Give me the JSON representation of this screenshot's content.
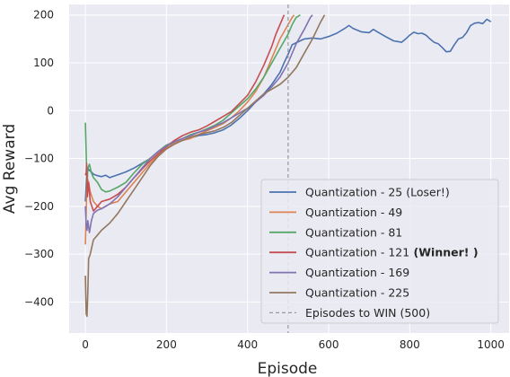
{
  "chart_data": {
    "type": "line",
    "xlabel": "Episode",
    "ylabel": "Avg Reward",
    "xlim": [
      -40,
      1045
    ],
    "ylim": [
      -465,
      222
    ],
    "xticks": [
      0,
      200,
      400,
      600,
      800,
      1000
    ],
    "yticks": [
      -400,
      -300,
      -200,
      -100,
      0,
      100,
      200
    ],
    "grid": true,
    "legend_position": "lower-right",
    "series": [
      {
        "name": "Quantization - 25 (Loser!)",
        "color": "#4c72b0",
        "points": [
          [
            0,
            -190
          ],
          [
            3,
            -140
          ],
          [
            6,
            -120
          ],
          [
            10,
            -125
          ],
          [
            15,
            -128
          ],
          [
            20,
            -133
          ],
          [
            30,
            -136
          ],
          [
            40,
            -138
          ],
          [
            50,
            -135
          ],
          [
            60,
            -140
          ],
          [
            70,
            -137
          ],
          [
            80,
            -134
          ],
          [
            90,
            -131
          ],
          [
            100,
            -128
          ],
          [
            120,
            -120
          ],
          [
            140,
            -110
          ],
          [
            160,
            -100
          ],
          [
            180,
            -85
          ],
          [
            200,
            -72
          ],
          [
            220,
            -68
          ],
          [
            240,
            -62
          ],
          [
            260,
            -57
          ],
          [
            280,
            -52
          ],
          [
            300,
            -50
          ],
          [
            320,
            -46
          ],
          [
            340,
            -40
          ],
          [
            360,
            -30
          ],
          [
            380,
            -16
          ],
          [
            400,
            0
          ],
          [
            420,
            18
          ],
          [
            440,
            35
          ],
          [
            460,
            55
          ],
          [
            480,
            80
          ],
          [
            490,
            100
          ],
          [
            500,
            118
          ],
          [
            510,
            138
          ],
          [
            520,
            142
          ],
          [
            540,
            150
          ],
          [
            560,
            152
          ],
          [
            580,
            150
          ],
          [
            600,
            155
          ],
          [
            620,
            162
          ],
          [
            640,
            172
          ],
          [
            650,
            178
          ],
          [
            660,
            172
          ],
          [
            680,
            165
          ],
          [
            700,
            163
          ],
          [
            710,
            170
          ],
          [
            720,
            165
          ],
          [
            740,
            155
          ],
          [
            760,
            146
          ],
          [
            780,
            143
          ],
          [
            790,
            150
          ],
          [
            800,
            158
          ],
          [
            810,
            164
          ],
          [
            820,
            161
          ],
          [
            830,
            162
          ],
          [
            840,
            158
          ],
          [
            850,
            150
          ],
          [
            860,
            143
          ],
          [
            870,
            140
          ],
          [
            880,
            132
          ],
          [
            890,
            123
          ],
          [
            900,
            124
          ],
          [
            910,
            138
          ],
          [
            920,
            150
          ],
          [
            930,
            153
          ],
          [
            940,
            163
          ],
          [
            950,
            178
          ],
          [
            960,
            183
          ],
          [
            970,
            184
          ],
          [
            980,
            182
          ],
          [
            990,
            191
          ],
          [
            1000,
            186
          ]
        ]
      },
      {
        "name": "Quantization - 49",
        "color": "#dd8452",
        "points": [
          [
            0,
            -280
          ],
          [
            2,
            -210
          ],
          [
            4,
            -140
          ],
          [
            8,
            -150
          ],
          [
            12,
            -170
          ],
          [
            20,
            -190
          ],
          [
            30,
            -200
          ],
          [
            40,
            -205
          ],
          [
            50,
            -200
          ],
          [
            60,
            -195
          ],
          [
            80,
            -190
          ],
          [
            100,
            -170
          ],
          [
            120,
            -150
          ],
          [
            140,
            -130
          ],
          [
            160,
            -110
          ],
          [
            180,
            -92
          ],
          [
            200,
            -78
          ],
          [
            220,
            -68
          ],
          [
            240,
            -62
          ],
          [
            260,
            -58
          ],
          [
            280,
            -50
          ],
          [
            300,
            -42
          ],
          [
            320,
            -35
          ],
          [
            340,
            -27
          ],
          [
            360,
            -15
          ],
          [
            380,
            0
          ],
          [
            400,
            18
          ],
          [
            420,
            40
          ],
          [
            440,
            70
          ],
          [
            460,
            110
          ],
          [
            480,
            150
          ],
          [
            500,
            180
          ],
          [
            510,
            195
          ],
          [
            515,
            200
          ]
        ]
      },
      {
        "name": "Quantization - 81",
        "color": "#55a868",
        "points": [
          [
            0,
            -25
          ],
          [
            2,
            -90
          ],
          [
            4,
            -160
          ],
          [
            6,
            -120
          ],
          [
            10,
            -112
          ],
          [
            15,
            -130
          ],
          [
            20,
            -140
          ],
          [
            30,
            -150
          ],
          [
            40,
            -165
          ],
          [
            50,
            -170
          ],
          [
            60,
            -168
          ],
          [
            80,
            -160
          ],
          [
            100,
            -150
          ],
          [
            120,
            -130
          ],
          [
            140,
            -112
          ],
          [
            160,
            -100
          ],
          [
            180,
            -85
          ],
          [
            200,
            -72
          ],
          [
            220,
            -65
          ],
          [
            240,
            -58
          ],
          [
            260,
            -50
          ],
          [
            280,
            -45
          ],
          [
            300,
            -38
          ],
          [
            320,
            -30
          ],
          [
            340,
            -20
          ],
          [
            360,
            -5
          ],
          [
            380,
            10
          ],
          [
            400,
            25
          ],
          [
            420,
            45
          ],
          [
            440,
            70
          ],
          [
            460,
            100
          ],
          [
            480,
            130
          ],
          [
            500,
            160
          ],
          [
            510,
            180
          ],
          [
            520,
            195
          ],
          [
            530,
            200
          ]
        ]
      },
      {
        "name": "Quantization - 121",
        "color": "#c44e52",
        "bold_suffix": "(Winner! )",
        "points": [
          [
            0,
            -135
          ],
          [
            2,
            -130
          ],
          [
            3,
            -110
          ],
          [
            5,
            -180
          ],
          [
            8,
            -150
          ],
          [
            12,
            -190
          ],
          [
            20,
            -210
          ],
          [
            30,
            -200
          ],
          [
            40,
            -190
          ],
          [
            60,
            -185
          ],
          [
            80,
            -175
          ],
          [
            100,
            -160
          ],
          [
            120,
            -140
          ],
          [
            140,
            -122
          ],
          [
            160,
            -105
          ],
          [
            180,
            -90
          ],
          [
            200,
            -75
          ],
          [
            220,
            -62
          ],
          [
            240,
            -52
          ],
          [
            260,
            -45
          ],
          [
            280,
            -40
          ],
          [
            300,
            -32
          ],
          [
            320,
            -22
          ],
          [
            340,
            -12
          ],
          [
            360,
            -2
          ],
          [
            380,
            15
          ],
          [
            400,
            32
          ],
          [
            420,
            60
          ],
          [
            440,
            95
          ],
          [
            460,
            135
          ],
          [
            470,
            160
          ],
          [
            480,
            180
          ],
          [
            490,
            200
          ]
        ]
      },
      {
        "name": "Quantization - 169",
        "color": "#8172b2",
        "points": [
          [
            0,
            -200
          ],
          [
            2,
            -240
          ],
          [
            4,
            -250
          ],
          [
            6,
            -230
          ],
          [
            10,
            -255
          ],
          [
            15,
            -230
          ],
          [
            20,
            -215
          ],
          [
            30,
            -208
          ],
          [
            40,
            -205
          ],
          [
            60,
            -195
          ],
          [
            80,
            -180
          ],
          [
            100,
            -160
          ],
          [
            120,
            -140
          ],
          [
            140,
            -120
          ],
          [
            160,
            -100
          ],
          [
            180,
            -85
          ],
          [
            200,
            -74
          ],
          [
            220,
            -65
          ],
          [
            240,
            -58
          ],
          [
            260,
            -52
          ],
          [
            280,
            -45
          ],
          [
            300,
            -40
          ],
          [
            320,
            -32
          ],
          [
            340,
            -25
          ],
          [
            360,
            -15
          ],
          [
            380,
            -5
          ],
          [
            400,
            5
          ],
          [
            420,
            18
          ],
          [
            440,
            32
          ],
          [
            460,
            50
          ],
          [
            480,
            70
          ],
          [
            500,
            100
          ],
          [
            520,
            140
          ],
          [
            540,
            170
          ],
          [
            555,
            195
          ],
          [
            560,
            200
          ]
        ]
      },
      {
        "name": "Quantization - 225",
        "color": "#937860",
        "points": [
          [
            0,
            -345
          ],
          [
            2,
            -425
          ],
          [
            4,
            -430
          ],
          [
            6,
            -380
          ],
          [
            8,
            -310
          ],
          [
            12,
            -300
          ],
          [
            20,
            -270
          ],
          [
            30,
            -260
          ],
          [
            40,
            -250
          ],
          [
            60,
            -235
          ],
          [
            80,
            -215
          ],
          [
            100,
            -190
          ],
          [
            120,
            -165
          ],
          [
            140,
            -140
          ],
          [
            160,
            -115
          ],
          [
            180,
            -95
          ],
          [
            200,
            -80
          ],
          [
            220,
            -70
          ],
          [
            240,
            -62
          ],
          [
            260,
            -55
          ],
          [
            280,
            -50
          ],
          [
            300,
            -46
          ],
          [
            320,
            -42
          ],
          [
            340,
            -35
          ],
          [
            360,
            -25
          ],
          [
            380,
            -10
          ],
          [
            400,
            5
          ],
          [
            420,
            20
          ],
          [
            440,
            35
          ],
          [
            460,
            45
          ],
          [
            480,
            55
          ],
          [
            500,
            70
          ],
          [
            520,
            90
          ],
          [
            540,
            120
          ],
          [
            560,
            150
          ],
          [
            580,
            185
          ],
          [
            590,
            200
          ]
        ]
      },
      {
        "name": "Episodes to WIN (500)",
        "color": "#999999",
        "dashed": true,
        "vline_x": 500
      }
    ]
  }
}
